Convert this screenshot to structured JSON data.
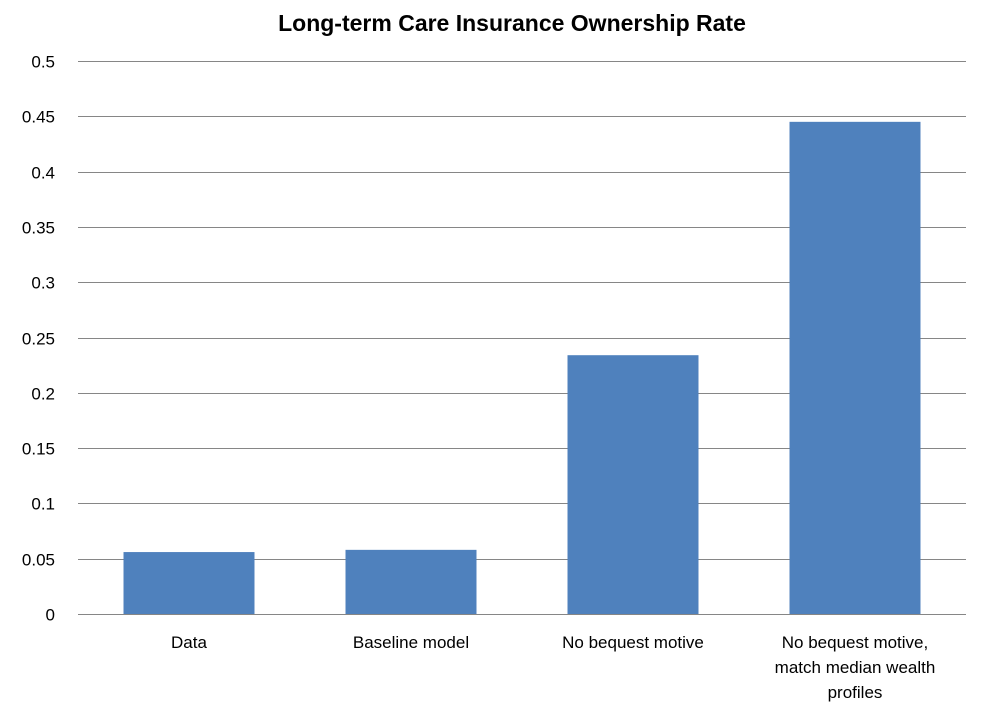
{
  "chart_data": {
    "type": "bar",
    "title": "Long-term Care Insurance Ownership Rate",
    "xlabel": "",
    "ylabel": "",
    "categories": [
      "Data",
      "Baseline model",
      "No bequest motive",
      "No bequest motive, match median wealth profiles"
    ],
    "category_lines": [
      [
        "Data"
      ],
      [
        "Baseline model"
      ],
      [
        "No bequest motive"
      ],
      [
        "No bequest motive,",
        "match median wealth",
        "profiles"
      ]
    ],
    "values": [
      0.056,
      0.058,
      0.234,
      0.445
    ],
    "ylim": [
      0,
      0.5
    ],
    "yticks": [
      0,
      0.05,
      0.1,
      0.15,
      0.2,
      0.25,
      0.3,
      0.35,
      0.4,
      0.45,
      0.5
    ],
    "ytick_labels": [
      "0",
      "0.05",
      "0.1",
      "0.15",
      "0.2",
      "0.25",
      "0.3",
      "0.35",
      "0.4",
      "0.45",
      "0.5"
    ],
    "grid": true,
    "legend": "none",
    "colors": {
      "bar": "#4F81BD",
      "grid": "#868686",
      "axis": "#868686",
      "text": "#000000"
    }
  }
}
